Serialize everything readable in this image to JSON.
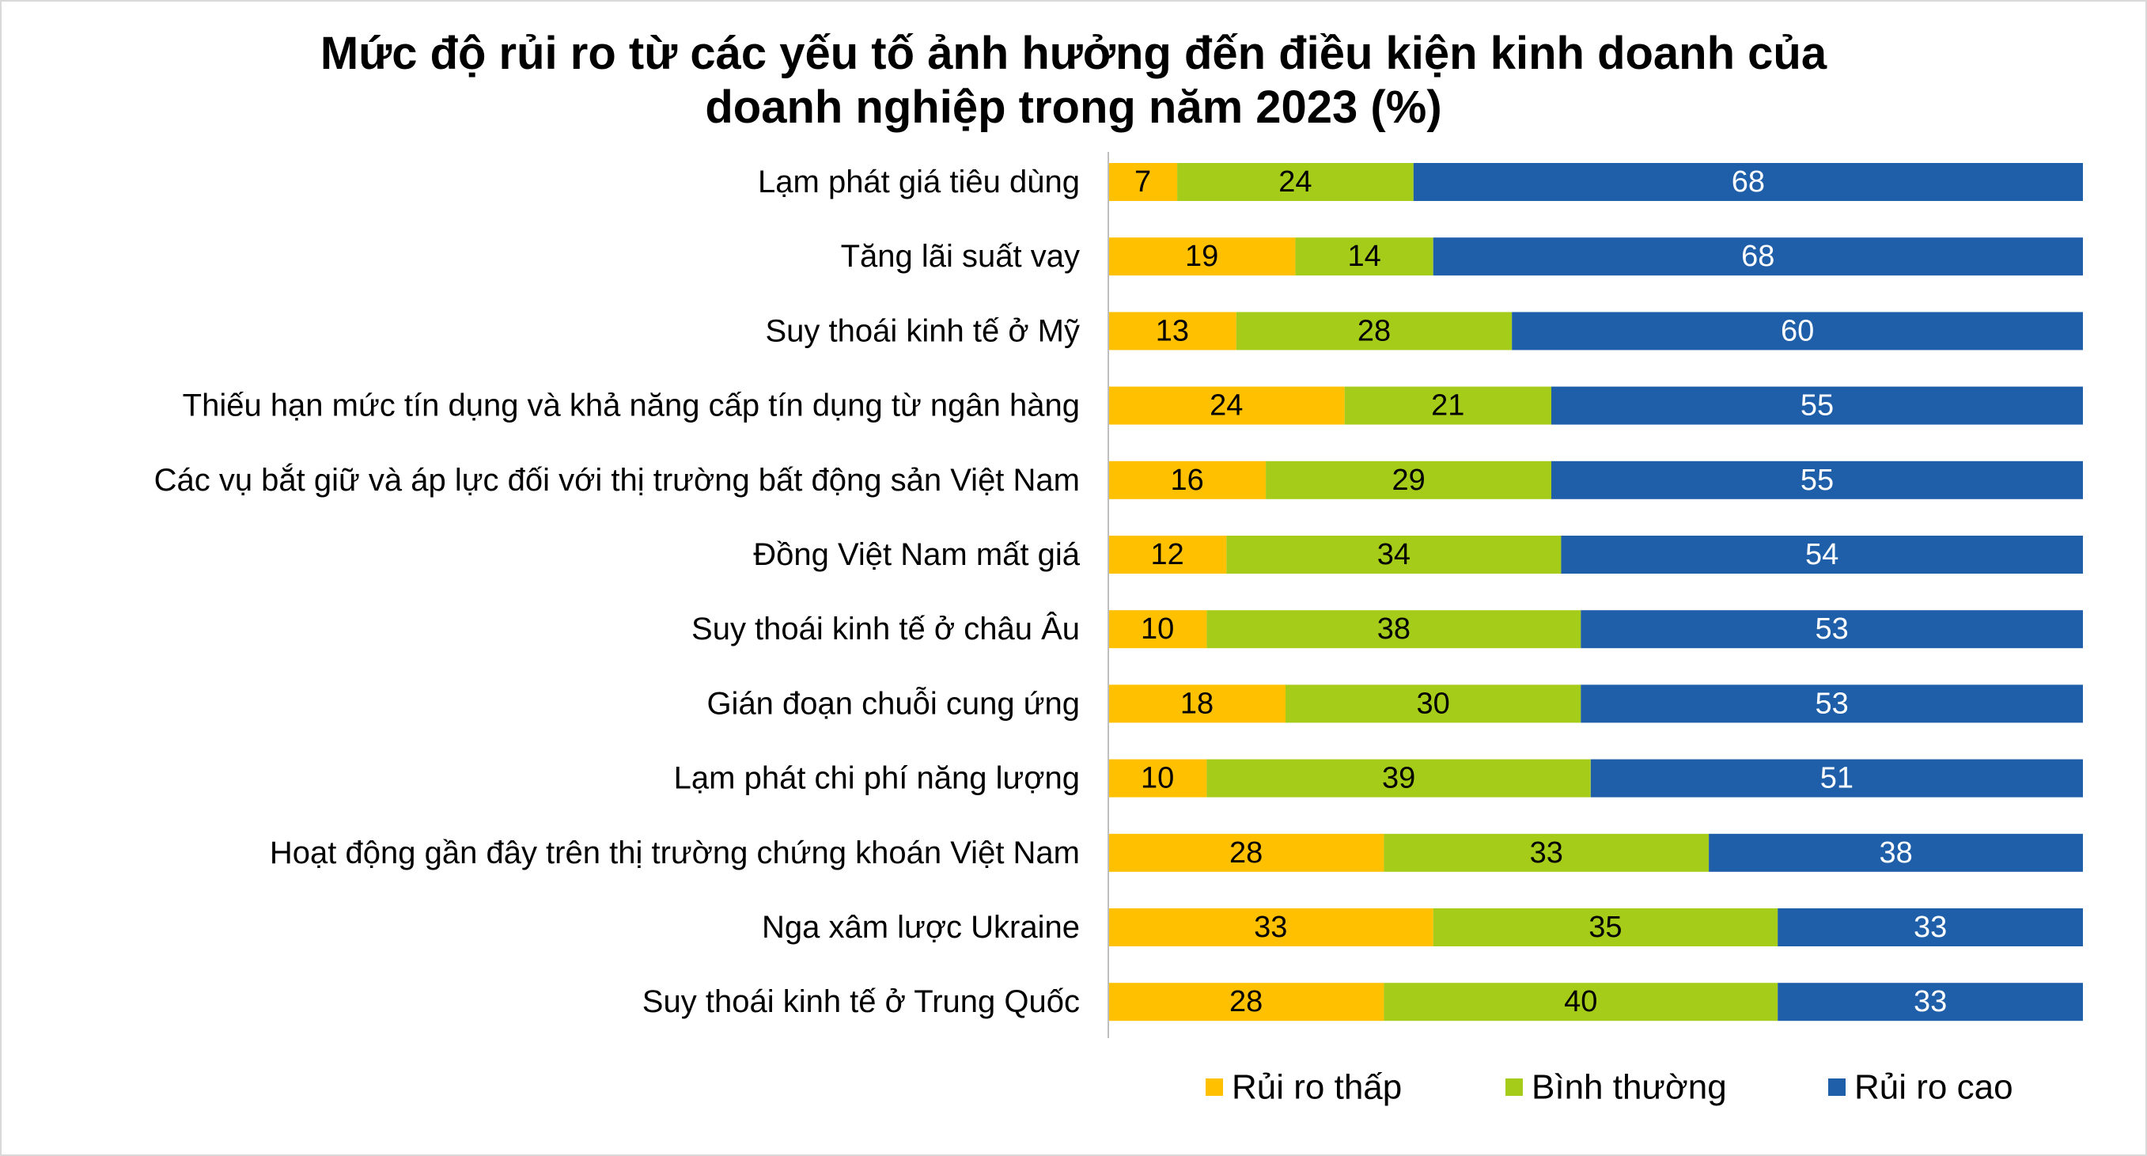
{
  "chart_data": {
    "type": "bar",
    "orientation": "horizontal",
    "stacked": true,
    "title_lines": [
      "Mức độ rủi ro từ các yếu tố ảnh hưởng đến điều kiện kinh doanh của",
      "doanh nghiệp trong năm 2023 (%)"
    ],
    "categories": [
      "Lạm phát giá tiêu dùng",
      "Tăng lãi suất vay",
      "Suy thoái kinh tế ở Mỹ",
      "Thiếu hạn mức tín dụng và khả năng cấp tín dụng từ ngân hàng",
      "Các vụ bắt giữ và áp lực đối với thị trường bất động sản Việt Nam",
      "Đồng Việt Nam mất giá",
      "Suy thoái kinh tế ở châu Âu",
      "Gián đoạn chuỗi cung ứng",
      "Lạm phát chi phí năng lượng",
      "Hoạt động gần đây trên thị trường chứng khoán Việt Nam",
      "Nga xâm lược Ukraine",
      "Suy thoái kinh tế ở Trung Quốc"
    ],
    "series": [
      {
        "name": "Rủi ro thấp",
        "color": "#FFC000",
        "label_color": "#000000",
        "values": [
          7,
          19,
          13,
          24,
          16,
          12,
          10,
          18,
          10,
          28,
          33,
          28
        ]
      },
      {
        "name": "Bình thường",
        "color": "#A6CC1A",
        "label_color": "#000000",
        "values": [
          24,
          14,
          28,
          21,
          29,
          34,
          38,
          30,
          39,
          33,
          35,
          40
        ]
      },
      {
        "name": "Rủi ro cao",
        "color": "#1F5FAA",
        "label_color": "#ffffff",
        "values": [
          68,
          68,
          60,
          55,
          55,
          54,
          53,
          53,
          51,
          38,
          33,
          33
        ]
      }
    ],
    "xlim": [
      0,
      100
    ],
    "grid": false,
    "legend_position": "bottom",
    "data_labels": true
  }
}
